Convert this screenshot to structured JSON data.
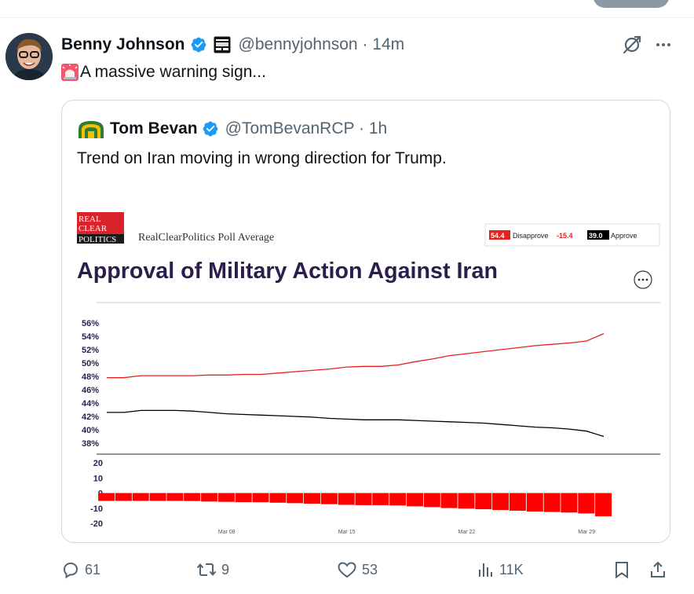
{
  "post": {
    "author_name": "Benny Johnson",
    "handle": "@bennyjohnson",
    "time": "14m",
    "text": "A massive warning sign...",
    "stats": {
      "replies": "61",
      "reposts": "9",
      "likes": "53",
      "views": "11K"
    }
  },
  "quote": {
    "author_name": "Tom Bevan",
    "handle": "@TomBevanRCP",
    "time": "1h",
    "text": "Trend on Iran moving in wrong direction for Trump.",
    "card": {
      "logo_lines": [
        "REAL",
        "CLEAR",
        "POLITICS"
      ],
      "source": "RealClearPolitics Poll Average",
      "title": "Approval of Military Action Against Iran",
      "legend": {
        "disapprove_value": "54.4",
        "disapprove_label": "Disapprove",
        "spread": "-15.4",
        "approve_value": "39.0",
        "approve_label": "Approve"
      }
    }
  },
  "colors": {
    "disapprove": "#e8201e",
    "approve": "#000000",
    "spread_bar": "#ff0000",
    "title": "#2b1e4d",
    "verified": "#1d9bf0"
  },
  "chart_data": [
    {
      "type": "line",
      "yticks": [
        "56%",
        "54%",
        "52%",
        "50%",
        "48%",
        "46%",
        "44%",
        "42%",
        "40%",
        "38%"
      ],
      "ylim": [
        38,
        56
      ],
      "xticks": [
        "Mar 08",
        "Mar 15",
        "Mar 22",
        "Mar 29"
      ],
      "x": [
        0,
        1,
        2,
        3,
        4,
        5,
        6,
        7,
        8,
        9,
        10,
        11,
        12,
        13,
        14,
        15,
        16,
        17,
        18,
        19,
        20,
        21,
        22,
        23,
        24,
        25,
        26,
        27,
        28,
        29
      ],
      "series": [
        {
          "name": "Disapprove",
          "color": "#e8201e",
          "values": [
            47.8,
            47.8,
            48.1,
            48.1,
            48.1,
            48.1,
            48.2,
            48.2,
            48.3,
            48.3,
            48.5,
            48.7,
            48.9,
            49.1,
            49.4,
            49.5,
            49.5,
            49.7,
            50.2,
            50.6,
            51.1,
            51.4,
            51.7,
            52.0,
            52.3,
            52.6,
            52.8,
            53.0,
            53.3,
            54.4
          ]
        },
        {
          "name": "Approve",
          "color": "#000000",
          "values": [
            42.6,
            42.6,
            42.9,
            42.9,
            42.9,
            42.8,
            42.6,
            42.4,
            42.3,
            42.2,
            42.1,
            42.0,
            41.9,
            41.7,
            41.6,
            41.5,
            41.5,
            41.5,
            41.4,
            41.3,
            41.2,
            41.1,
            41.0,
            40.8,
            40.6,
            40.4,
            40.3,
            40.1,
            39.8,
            39.0
          ]
        }
      ]
    },
    {
      "type": "bar",
      "yticks": [
        "20",
        "10",
        "0",
        "-10",
        "-20"
      ],
      "ylim": [
        -20,
        20
      ],
      "xticks": [
        "Mar 08",
        "Mar 15",
        "Mar 22",
        "Mar 29"
      ],
      "series": [
        {
          "name": "Spread",
          "color": "#ff0000",
          "values": [
            -5.2,
            -5.2,
            -5.2,
            -5.2,
            -5.2,
            -5.3,
            -5.6,
            -5.8,
            -6.0,
            -6.1,
            -6.4,
            -6.7,
            -7.0,
            -7.4,
            -7.8,
            -8.0,
            -8.0,
            -8.2,
            -8.8,
            -9.3,
            -9.9,
            -10.3,
            -10.7,
            -11.2,
            -11.7,
            -12.2,
            -12.5,
            -12.9,
            -13.5,
            -15.4
          ]
        }
      ]
    }
  ]
}
